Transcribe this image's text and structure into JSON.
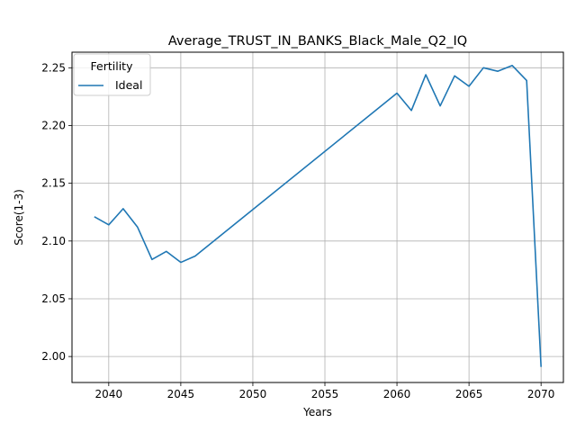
{
  "chart_data": {
    "type": "line",
    "title": "Average_TRUST_IN_BANKS_Black_Male_Q2_IQ",
    "xlabel": "Years",
    "ylabel": "Score(1-3)",
    "xlim": [
      2037.45,
      2071.55
    ],
    "ylim": [
      1.9775,
      2.2635
    ],
    "xticks": [
      2040,
      2045,
      2050,
      2055,
      2060,
      2065,
      2070
    ],
    "yticks": [
      2.0,
      2.05,
      2.1,
      2.15,
      2.2,
      2.25
    ],
    "ytick_labels": [
      "2.00",
      "2.05",
      "2.10",
      "2.15",
      "2.20",
      "2.25"
    ],
    "grid": true,
    "legend": {
      "title": "Fertility",
      "placement": "top-left"
    },
    "series": [
      {
        "name": "Ideal",
        "color": "#1f77b4",
        "x": [
          2039,
          2040,
          2041,
          2042,
          2043,
          2044,
          2045,
          2046,
          2060,
          2061,
          2062,
          2063,
          2064,
          2065,
          2066,
          2067,
          2068,
          2069,
          2070
        ],
        "y": [
          2.121,
          2.114,
          2.128,
          2.112,
          2.084,
          2.091,
          2.0815,
          2.087,
          2.228,
          2.213,
          2.244,
          2.217,
          2.243,
          2.234,
          2.25,
          2.247,
          2.252,
          2.239,
          1.991
        ]
      }
    ]
  }
}
